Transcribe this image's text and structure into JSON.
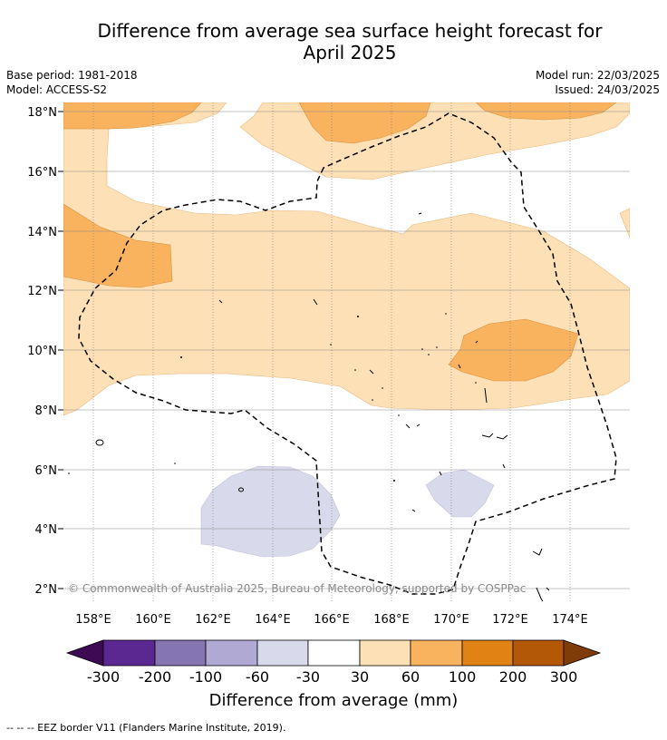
{
  "title_line1": "Difference from average sea surface height forecast for",
  "title_line2": "April 2025",
  "base_period": "Base period: 1981-2018",
  "model": "Model: ACCESS-S2",
  "model_run": "Model run: 22/03/2025",
  "issued": "Issued: 24/03/2025",
  "copyright": "© Commonwealth of Australia 2025, Bureau of Meteorology, supported by COSPPac",
  "lat_labels": [
    "18°N",
    "16°N",
    "14°N",
    "12°N",
    "10°N",
    "8°N",
    "6°N",
    "4°N",
    "2°N"
  ],
  "lon_labels": [
    "158°E",
    "160°E",
    "162°E",
    "164°E",
    "166°E",
    "168°E",
    "170°E",
    "172°E",
    "174°E"
  ],
  "colorbar": {
    "ticks": [
      "-300",
      "-200",
      "-100",
      "-60",
      "-30",
      "30",
      "60",
      "100",
      "200",
      "300"
    ],
    "colors": [
      "#3f0a54",
      "#5b2891",
      "#8575b2",
      "#b0a9d3",
      "#d9d9ec",
      "#ffffff",
      "#fde0b5",
      "#f9b35f",
      "#e08214",
      "#b35806",
      "#7f3b08"
    ],
    "label": "Difference from average (mm)"
  },
  "legend_note": "--  --  -- EEZ border V11 (Flanders Marine Institute, 2019)."
}
